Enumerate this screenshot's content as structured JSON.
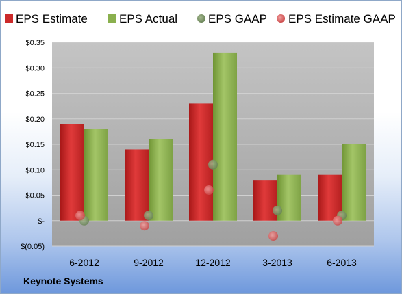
{
  "footer": {
    "company": "Keynote Systems"
  },
  "colors": {
    "eps_estimate": "#cc2a2a",
    "eps_actual": "#8ab04e",
    "eps_gaap": "#7f9a69",
    "eps_estimate_gaap": "#e06a6a",
    "plot_bg_top": "#bdbdbd",
    "plot_bg_bottom": "#a4a4a4"
  },
  "chart_data": {
    "type": "bar",
    "categories": [
      "6-2012",
      "9-2012",
      "12-2012",
      "3-2013",
      "6-2013"
    ],
    "series": [
      {
        "name": "EPS Estimate",
        "kind": "bar",
        "values": [
          0.19,
          0.14,
          0.23,
          0.08,
          0.09
        ]
      },
      {
        "name": "EPS Actual",
        "kind": "bar",
        "values": [
          0.18,
          0.16,
          0.33,
          0.09,
          0.15
        ]
      },
      {
        "name": "EPS GAAP",
        "kind": "scatter",
        "values": [
          0.0,
          0.01,
          0.11,
          0.02,
          0.01
        ]
      },
      {
        "name": "EPS Estimate GAAP",
        "kind": "scatter",
        "values": [
          0.01,
          -0.01,
          0.06,
          -0.03,
          0.0
        ]
      }
    ],
    "ylim": [
      -0.05,
      0.35
    ],
    "yticks": [
      0.35,
      0.3,
      0.25,
      0.2,
      0.15,
      0.1,
      0.05,
      0,
      -0.05
    ],
    "ytick_labels": [
      "$0.35",
      "$0.30",
      "$0.25",
      "$0.20",
      "$0.15",
      "$0.10",
      "$0.05",
      "$-",
      "$(0.05)"
    ],
    "grid": true,
    "legend_position": "top"
  }
}
